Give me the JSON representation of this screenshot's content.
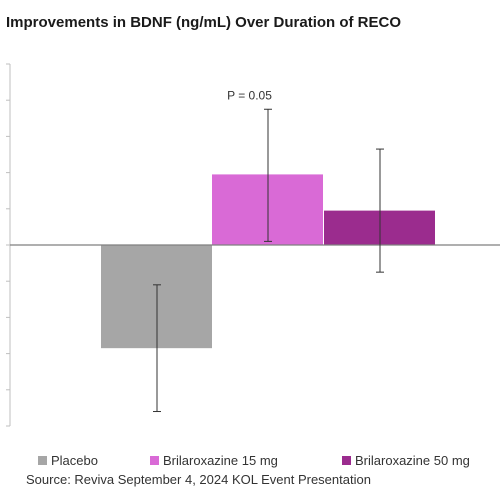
{
  "chart_data": {
    "type": "bar",
    "title": "Improvements in BDNF (ng/mL) Over Duration of RECO",
    "series": [
      {
        "name": "Placebo",
        "value": -2.85,
        "err_low": -4.6,
        "err_high": -1.1,
        "color": "#a6a6a6"
      },
      {
        "name": "Brilaroxazine 15 mg",
        "value": 1.95,
        "err_low": 0.1,
        "err_high": 3.75,
        "color": "#d96ad6"
      },
      {
        "name": "Brilaroxazine 50 mg",
        "value": 0.95,
        "err_low": -0.75,
        "err_high": 2.65,
        "color": "#9b2c8e"
      }
    ],
    "annotations": [
      {
        "text": "P = 0.05",
        "series": "Brilaroxazine 15 mg"
      }
    ],
    "ylim": [
      -5,
      5
    ],
    "grid": false,
    "legend": "bottom"
  },
  "source": "Source: Reviva September 4, 2024 KOL Event Presentation"
}
